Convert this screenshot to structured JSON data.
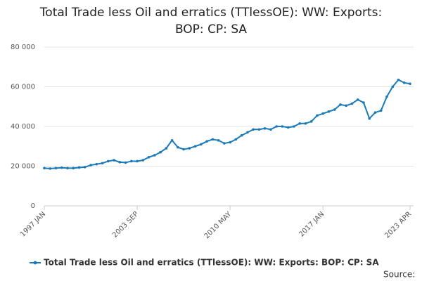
{
  "chart_data": {
    "type": "line",
    "title": "Total Trade less Oil and erratics (TTlessOE): WW: Exports: BOP: CP: SA",
    "categories": [
      "1997 JAN",
      null,
      null,
      null,
      null,
      null,
      null,
      null,
      null,
      null,
      null,
      null,
      null,
      null,
      null,
      null,
      "2003 SEP",
      null,
      null,
      null,
      null,
      null,
      null,
      null,
      null,
      null,
      null,
      null,
      null,
      null,
      null,
      null,
      "2010 MAY",
      null,
      null,
      null,
      null,
      null,
      null,
      null,
      null,
      null,
      null,
      null,
      null,
      null,
      null,
      null,
      "2017 JAN",
      null,
      null,
      null,
      null,
      null,
      null,
      null,
      null,
      null,
      null,
      null,
      null,
      null,
      null,
      "2023 APR"
    ],
    "series": [
      {
        "name": "Total Trade less Oil and erratics (TTlessOE): WW: Exports: BOP: CP: SA",
        "color": "#1a7ab8",
        "values": [
          19000,
          18800,
          19000,
          19200,
          19000,
          19000,
          19300,
          19500,
          20500,
          21000,
          21500,
          22500,
          23000,
          22000,
          21800,
          22500,
          22500,
          23000,
          24500,
          25500,
          27000,
          29000,
          33000,
          29500,
          28500,
          29000,
          30000,
          31000,
          32500,
          33500,
          33000,
          31500,
          32000,
          33500,
          35500,
          37000,
          38500,
          38500,
          39000,
          38500,
          40000,
          40000,
          39500,
          40000,
          41500,
          41500,
          42500,
          45500,
          46500,
          47500,
          48500,
          51000,
          50500,
          51500,
          53500,
          52000,
          44000,
          47000,
          48000,
          55000,
          60000,
          63500,
          62000,
          61500
        ]
      }
    ],
    "ylim": [
      0,
      80000
    ],
    "yticks": [
      0,
      {
        "value": 20000,
        "label": "20 000"
      },
      {
        "value": 40000,
        "label": "40 000"
      },
      {
        "value": 60000,
        "label": "60 000"
      },
      {
        "value": 80000,
        "label": "80 000"
      }
    ],
    "grid": true,
    "legend": "bottom",
    "source": "Source:"
  }
}
